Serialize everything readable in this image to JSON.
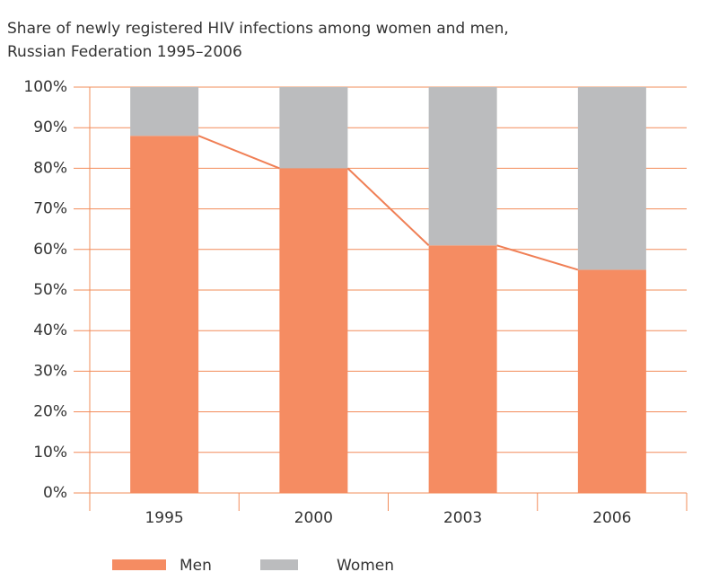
{
  "chart_data": {
    "type": "stacked_bar",
    "title": [
      "Share of newly registered HIV infections among women and men,",
      "Russian Federation 1995–2006"
    ],
    "categories": [
      "1995",
      "2000",
      "2003",
      "2006"
    ],
    "series": [
      {
        "name": "Men",
        "color": "#f58c62",
        "values": [
          88,
          80,
          61,
          55
        ]
      },
      {
        "name": "Women",
        "color": "#bbbcbe",
        "values": [
          12,
          20,
          39,
          45
        ]
      }
    ],
    "line_color": "#f07f55",
    "ylim": [
      0,
      100
    ],
    "yticks": [
      {
        "value": 0,
        "label": "0%"
      },
      {
        "value": 10,
        "label": "10%"
      },
      {
        "value": 20,
        "label": "20%"
      },
      {
        "value": 30,
        "label": "30%"
      },
      {
        "value": 40,
        "label": "40%"
      },
      {
        "value": 50,
        "label": "50%"
      },
      {
        "value": 60,
        "label": "60%"
      },
      {
        "value": 70,
        "label": "70%"
      },
      {
        "value": 80,
        "label": "80%"
      },
      {
        "value": 90,
        "label": "90%"
      },
      {
        "value": 100,
        "label": "100%"
      }
    ],
    "grid": true,
    "grid_color": "#f28c5a",
    "legend": "bottom"
  }
}
